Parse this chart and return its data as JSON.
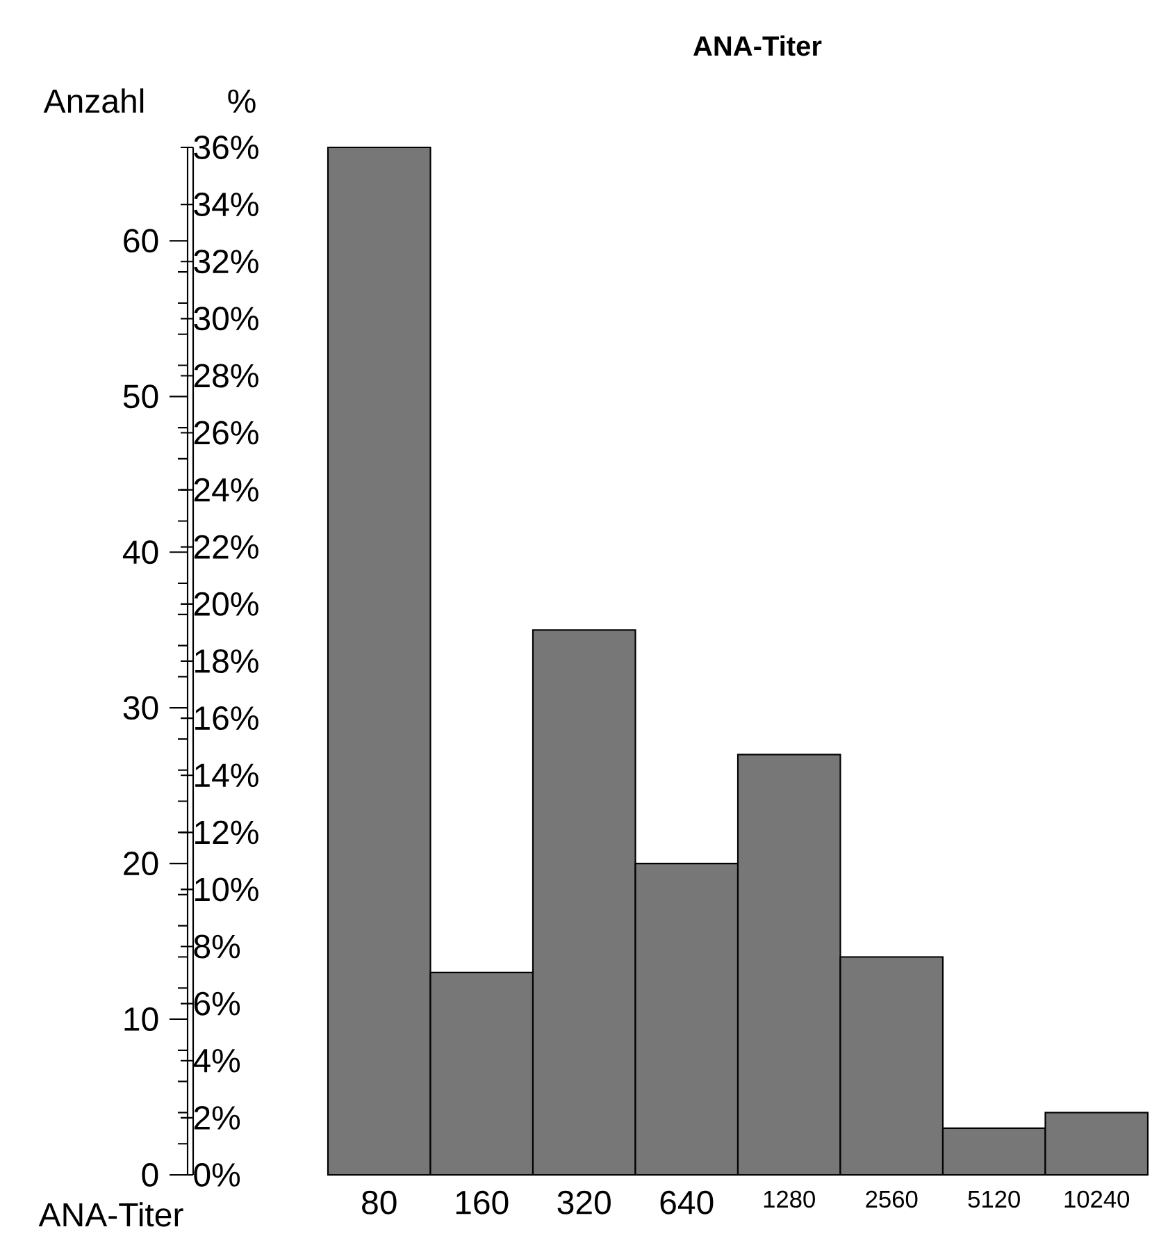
{
  "chart_data": {
    "type": "bar",
    "title": "ANA-Titer",
    "xlabel": "ANA-Titer",
    "ylabel": "Anzahl",
    "y2label": "%",
    "categories": [
      "80",
      "160",
      "320",
      "640",
      "1280",
      "2560",
      "5120",
      "10240"
    ],
    "values": [
      66,
      13,
      35,
      20,
      27,
      14,
      3,
      4
    ],
    "color": "#777777",
    "ylim": [
      0,
      66
    ],
    "yticks": [
      0,
      10,
      20,
      30,
      40,
      50,
      60
    ],
    "y2lim": [
      0,
      36
    ],
    "y2ticks": [
      {
        "value": 0,
        "label": "0%"
      },
      {
        "value": 2,
        "label": "2%"
      },
      {
        "value": 4,
        "label": "4%"
      },
      {
        "value": 6,
        "label": "6%"
      },
      {
        "value": 8,
        "label": "8%"
      },
      {
        "value": 10,
        "label": "10%"
      },
      {
        "value": 12,
        "label": "12%"
      },
      {
        "value": 14,
        "label": "14%"
      },
      {
        "value": 16,
        "label": "16%"
      },
      {
        "value": 18,
        "label": "18%"
      },
      {
        "value": 20,
        "label": "20%"
      },
      {
        "value": 22,
        "label": "22%"
      },
      {
        "value": 24,
        "label": "24%"
      },
      {
        "value": 26,
        "label": "26%"
      },
      {
        "value": 28,
        "label": "28%"
      },
      {
        "value": 30,
        "label": "30%"
      },
      {
        "value": 32,
        "label": "32%"
      },
      {
        "value": 34,
        "label": "34%"
      },
      {
        "value": 36,
        "label": "36%"
      }
    ]
  }
}
